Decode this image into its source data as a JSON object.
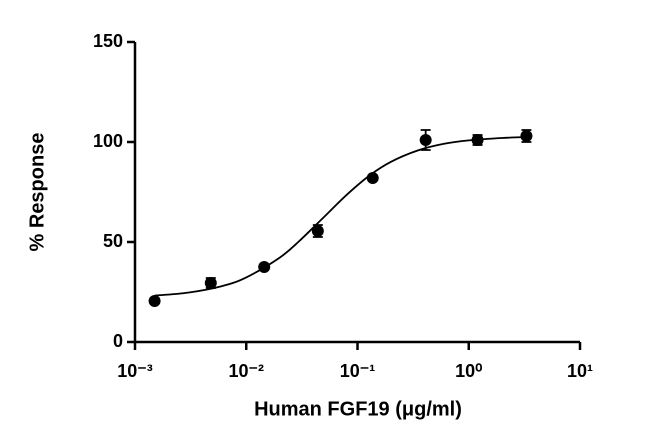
{
  "chart_data": {
    "type": "scatter",
    "x_label": "Human FGF19 (μg/ml)",
    "y_label": "% Response",
    "x_scale": "log",
    "xlim": [
      0.001,
      10
    ],
    "xticks": [
      {
        "value": 0.001,
        "label": "10⁻³"
      },
      {
        "value": 0.01,
        "label": "10⁻²"
      },
      {
        "value": 0.1,
        "label": "10⁻¹"
      },
      {
        "value": 1,
        "label": "10⁰"
      },
      {
        "value": 10,
        "label": "10¹"
      }
    ],
    "ylim": [
      0,
      150
    ],
    "yticks": [
      0,
      50,
      100,
      150
    ],
    "color": "#000000",
    "x": [
      0.0015,
      0.0048,
      0.0145,
      0.044,
      0.137,
      0.41,
      1.2,
      3.3
    ],
    "values": [
      20.5,
      29.5,
      37.5,
      55.5,
      82,
      101,
      101,
      103
    ],
    "errors": [
      1,
      2.5,
      1,
      3,
      1,
      5,
      2.5,
      3
    ],
    "fit": {
      "x": [
        0.0015,
        0.003,
        0.006,
        0.01,
        0.02,
        0.03,
        0.05,
        0.08,
        0.13,
        0.2,
        0.35,
        0.6,
        1,
        2,
        3.5
      ],
      "values": [
        23.2,
        24.7,
        27.9,
        32.3,
        42.2,
        50.5,
        62.5,
        73.6,
        83.5,
        90.1,
        95.8,
        99.1,
        100.8,
        102.0,
        102.5
      ]
    }
  }
}
